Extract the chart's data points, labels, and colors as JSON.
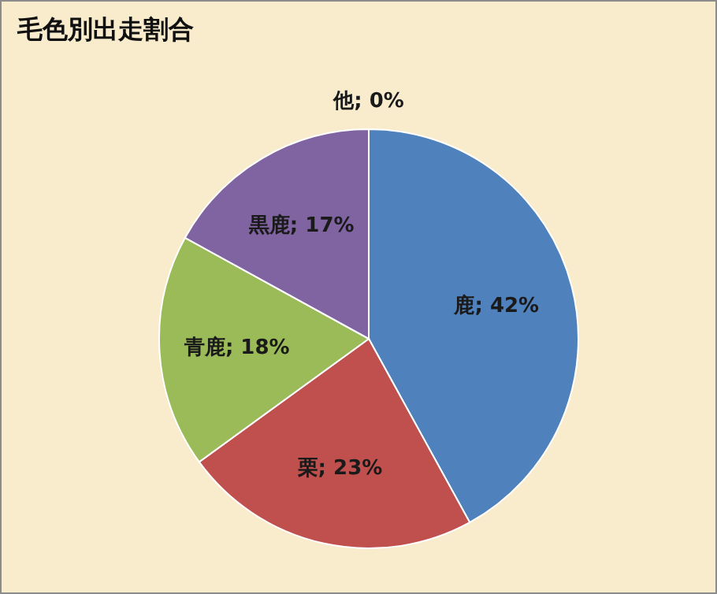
{
  "chart_data": {
    "type": "pie",
    "title": "毛色別出走割合",
    "categories": [
      "鹿",
      "栗",
      "青鹿",
      "黒鹿",
      "他"
    ],
    "values": [
      42,
      23,
      18,
      17,
      0
    ],
    "value_labels": [
      "; 42%",
      "; 23%",
      "; 18%",
      "; 17%",
      "; 0%"
    ],
    "colors": [
      "#4f81bd",
      "#c0504d",
      "#9bbb59",
      "#8064a2",
      "#4bacc6"
    ],
    "legend": false
  }
}
